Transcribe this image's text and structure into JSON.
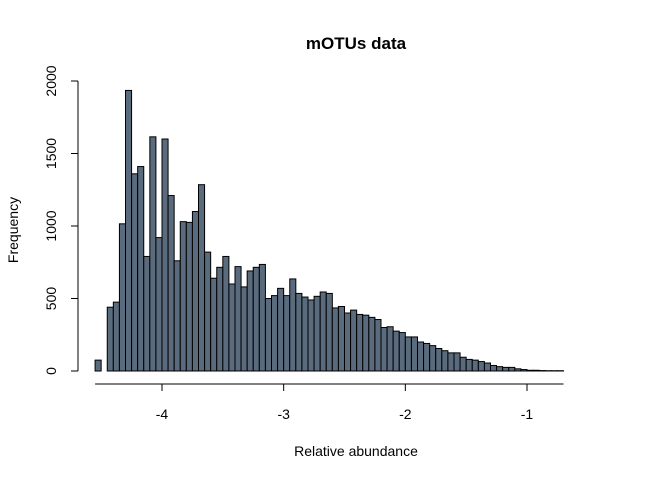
{
  "chart_data": {
    "type": "bar",
    "title": "mOTUs data",
    "xlabel": "Relative abundance",
    "ylabel": "Frequency",
    "bar_color": "#5a6b7d",
    "bin_start": -4.55,
    "bin_width": 0.05,
    "values": [
      75,
      0,
      440,
      475,
      1015,
      1935,
      1360,
      1410,
      790,
      1615,
      920,
      1600,
      1210,
      760,
      1030,
      1025,
      1100,
      1285,
      820,
      640,
      715,
      790,
      600,
      720,
      580,
      690,
      715,
      735,
      500,
      520,
      570,
      520,
      635,
      535,
      510,
      490,
      515,
      545,
      535,
      435,
      445,
      400,
      420,
      390,
      385,
      370,
      355,
      300,
      305,
      275,
      265,
      235,
      235,
      200,
      190,
      175,
      155,
      140,
      125,
      125,
      95,
      80,
      75,
      65,
      55,
      38,
      30,
      25,
      25,
      15,
      10,
      5,
      5,
      3,
      2,
      2,
      2
    ],
    "xlim": [
      -4.6,
      -0.35
    ],
    "ylim": [
      0,
      2000
    ],
    "x_ticks": [
      -4,
      -3,
      -2,
      -1
    ],
    "x_tick_labels": [
      "-4",
      "-3",
      "-2",
      "-1"
    ],
    "y_ticks": [
      0,
      500,
      1000,
      1500,
      2000
    ],
    "y_tick_labels": [
      "0",
      "500",
      "1000",
      "1500",
      "2000"
    ],
    "grid": false,
    "legend": "none"
  }
}
